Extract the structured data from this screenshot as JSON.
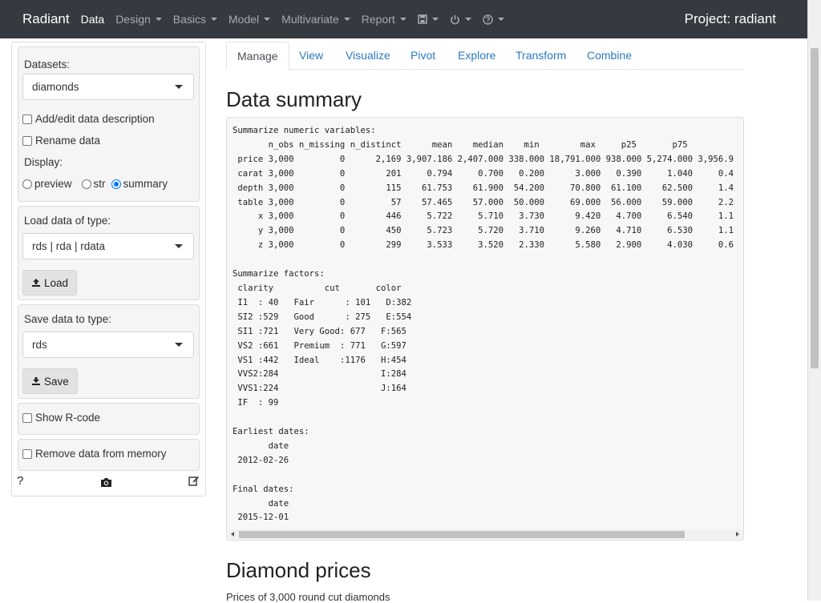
{
  "navbar": {
    "brand": "Radiant",
    "items": [
      {
        "label": "Data",
        "active": true
      },
      {
        "label": "Design"
      },
      {
        "label": "Basics"
      },
      {
        "label": "Model"
      },
      {
        "label": "Multivariate"
      },
      {
        "label": "Report"
      }
    ],
    "icons": [
      "save-icon",
      "power-icon",
      "help-icon"
    ],
    "project": "Project: radiant"
  },
  "sidebar": {
    "datasets_label": "Datasets:",
    "dataset_selected": "diamonds",
    "add_edit_label": "Add/edit data description",
    "rename_label": "Rename data",
    "display_label": "Display:",
    "display_options": [
      "preview",
      "str",
      "summary"
    ],
    "display_selected": "summary",
    "load_type_label": "Load data of type:",
    "load_type_selected": "rds | rda | rdata",
    "load_button": "Load",
    "save_type_label": "Save data to type:",
    "save_type_selected": "rds",
    "save_button": "Save",
    "show_rcode_label": "Show R-code",
    "remove_label": "Remove data from memory",
    "help_text": "?"
  },
  "tabs": [
    "Manage",
    "View",
    "Visualize",
    "Pivot",
    "Explore",
    "Transform",
    "Combine"
  ],
  "active_tab": "Manage",
  "main": {
    "summary_title": "Data summary",
    "summary_text": "Summarize numeric variables:\n       n_obs n_missing n_distinct      mean    median    min        max     p25       p75\n price 3,000         0      2,169 3,907.186 2,407.000 338.000 18,791.000 938.000 5,274.000 3,956.9\n carat 3,000         0        201     0.794     0.700   0.200      3.000   0.390     1.040     0.4\n depth 3,000         0        115    61.753    61.900  54.200     70.800  61.100    62.500     1.4\n table 3,000         0         57    57.465    57.000  50.000     69.000  56.000    59.000     2.2\n     x 3,000         0        446     5.722     5.710   3.730      9.420   4.700     6.540     1.1\n     y 3,000         0        450     5.723     5.720   3.710      9.260   4.710     6.530     1.1\n     z 3,000         0        299     3.533     3.520   2.330      5.580   2.900     4.030     0.6\n\nSummarize factors:\n clarity          cut       color\n I1  : 40   Fair      : 101   D:382\n SI2 :529   Good      : 275   E:554\n SI1 :721   Very Good: 677   F:565\n VS2 :661   Premium  : 771   G:597\n VS1 :442   Ideal    :1176   H:454\n VVS2:284                    I:284\n VVS1:224                    J:164\n IF  : 99\n\nEarliest dates:\n       date\n 2012-02-26\n\nFinal dates:\n       date\n 2015-12-01",
    "section2_title": "Diamond prices",
    "section2_subtitle": "Prices of 3,000 round cut diamonds"
  }
}
